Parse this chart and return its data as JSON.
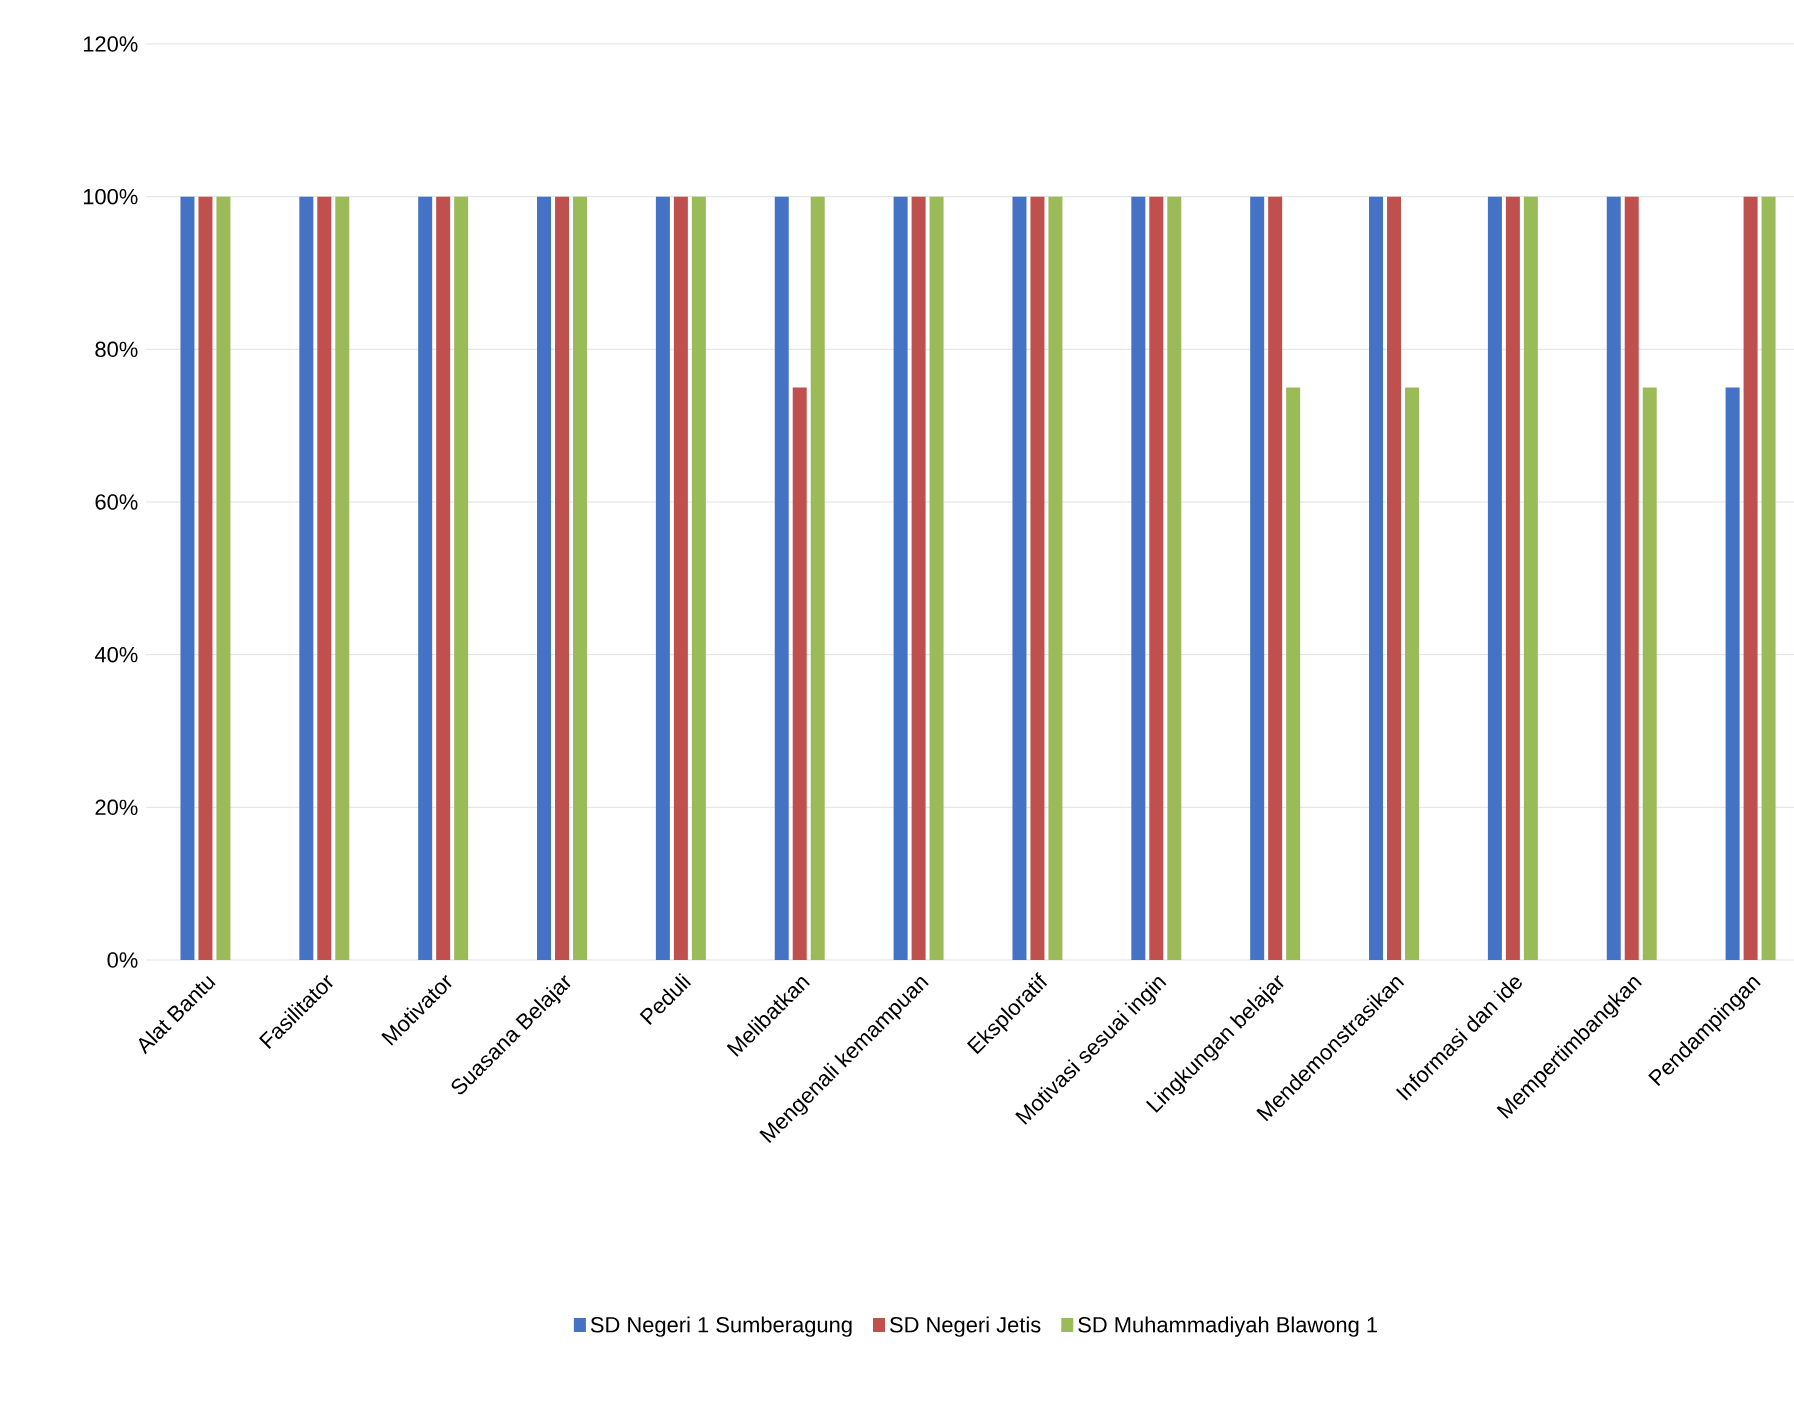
{
  "chart_data": {
    "type": "bar",
    "categories": [
      "Alat Bantu",
      "Fasilitator",
      "Motivator",
      "Suasana Belajar",
      "Peduli",
      "Melibatkan",
      "Mengenali kemampuan",
      "Eksploratif",
      "Motivasi sesuai ingin",
      "Lingkungan belajar",
      "Mendemonstrasikan",
      "Informasi dan ide",
      "Mempertimbangkan",
      "Pendampingan"
    ],
    "series": [
      {
        "name": "SD Negeri 1 Sumberagung",
        "color": "#4472c4",
        "values": [
          100,
          100,
          100,
          100,
          100,
          100,
          100,
          100,
          100,
          100,
          100,
          100,
          100,
          75
        ]
      },
      {
        "name": "SD Negeri Jetis",
        "color": "#c0504d",
        "values": [
          100,
          100,
          100,
          100,
          100,
          75,
          100,
          100,
          100,
          100,
          100,
          100,
          100,
          100
        ]
      },
      {
        "name": "SD Muhammadiyah Blawong 1",
        "color": "#9bbb59",
        "values": [
          100,
          100,
          100,
          100,
          100,
          100,
          100,
          100,
          100,
          75,
          75,
          100,
          75,
          100
        ]
      }
    ],
    "ylim": [
      0,
      120
    ],
    "yticks": [
      {
        "value": 0,
        "label": "0%"
      },
      {
        "value": 20,
        "label": "20%"
      },
      {
        "value": 40,
        "label": "40%"
      },
      {
        "value": 60,
        "label": "60%"
      },
      {
        "value": 80,
        "label": "80%"
      },
      {
        "value": 100,
        "label": "100%"
      },
      {
        "value": 120,
        "label": "120%"
      }
    ],
    "grid": "y",
    "legend": "bottom"
  }
}
